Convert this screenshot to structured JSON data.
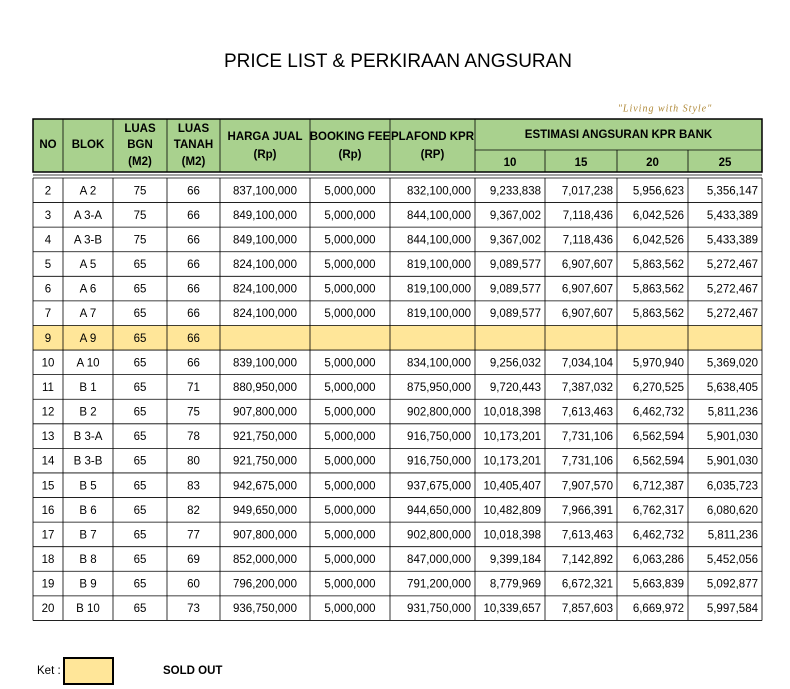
{
  "header": {
    "title": "PRICE LIST & PERKIRAAN ANGSURAN",
    "tagline": "\"Living with Style\""
  },
  "table": {
    "columns": [
      [
        "NO"
      ],
      [
        "BLOK"
      ],
      [
        "LUAS",
        "BGN",
        "(M2)"
      ],
      [
        "LUAS",
        "TANAH",
        "(M2)"
      ],
      [
        "HARGA JUAL",
        "(Rp)"
      ],
      [
        "BOOKING FEE",
        "(Rp)"
      ],
      [
        "PLAFOND KPR",
        "(RP)"
      ]
    ],
    "group_header": "ESTIMASI ANGSURAN KPR BANK",
    "sub_columns": [
      "10",
      "15",
      "20",
      "25"
    ],
    "rows": [
      [
        "2",
        "A 2",
        "75",
        "66",
        "837,100,000",
        "5,000,000",
        "832,100,000",
        "9,233,838",
        "7,017,238",
        "5,956,623",
        "5,356,147"
      ],
      [
        "3",
        "A 3-A",
        "75",
        "66",
        "849,100,000",
        "5,000,000",
        "844,100,000",
        "9,367,002",
        "7,118,436",
        "6,042,526",
        "5,433,389"
      ],
      [
        "4",
        "A 3-B",
        "75",
        "66",
        "849,100,000",
        "5,000,000",
        "844,100,000",
        "9,367,002",
        "7,118,436",
        "6,042,526",
        "5,433,389"
      ],
      [
        "5",
        "A 5",
        "65",
        "66",
        "824,100,000",
        "5,000,000",
        "819,100,000",
        "9,089,577",
        "6,907,607",
        "5,863,562",
        "5,272,467"
      ],
      [
        "6",
        "A 6",
        "65",
        "66",
        "824,100,000",
        "5,000,000",
        "819,100,000",
        "9,089,577",
        "6,907,607",
        "5,863,562",
        "5,272,467"
      ],
      [
        "7",
        "A 7",
        "65",
        "66",
        "824,100,000",
        "5,000,000",
        "819,100,000",
        "9,089,577",
        "6,907,607",
        "5,863,562",
        "5,272,467"
      ],
      [
        "9",
        "A 9",
        "65",
        "66"
      ],
      [
        "10",
        "A 10",
        "65",
        "66",
        "839,100,000",
        "5,000,000",
        "834,100,000",
        "9,256,032",
        "7,034,104",
        "5,970,940",
        "5,369,020"
      ],
      [
        "11",
        "B 1",
        "65",
        "71",
        "880,950,000",
        "5,000,000",
        "875,950,000",
        "9,720,443",
        "7,387,032",
        "6,270,525",
        "5,638,405"
      ],
      [
        "12",
        "B 2",
        "65",
        "75",
        "907,800,000",
        "5,000,000",
        "902,800,000",
        "10,018,398",
        "7,613,463",
        "6,462,732",
        "5,811,236"
      ],
      [
        "13",
        "B 3-A",
        "65",
        "78",
        "921,750,000",
        "5,000,000",
        "916,750,000",
        "10,173,201",
        "7,731,106",
        "6,562,594",
        "5,901,030"
      ],
      [
        "14",
        "B 3-B",
        "65",
        "80",
        "921,750,000",
        "5,000,000",
        "916,750,000",
        "10,173,201",
        "7,731,106",
        "6,562,594",
        "5,901,030"
      ],
      [
        "15",
        "B 5",
        "65",
        "83",
        "942,675,000",
        "5,000,000",
        "937,675,000",
        "10,405,407",
        "7,907,570",
        "6,712,387",
        "6,035,723"
      ],
      [
        "16",
        "B 6",
        "65",
        "82",
        "949,650,000",
        "5,000,000",
        "944,650,000",
        "10,482,809",
        "7,966,391",
        "6,762,317",
        "6,080,620"
      ],
      [
        "17",
        "B 7",
        "65",
        "77",
        "907,800,000",
        "5,000,000",
        "902,800,000",
        "10,018,398",
        "7,613,463",
        "6,462,732",
        "5,811,236"
      ],
      [
        "18",
        "B 8",
        "65",
        "69",
        "852,000,000",
        "5,000,000",
        "847,000,000",
        "9,399,184",
        "7,142,892",
        "6,063,286",
        "5,452,056"
      ],
      [
        "19",
        "B 9",
        "65",
        "60",
        "796,200,000",
        "5,000,000",
        "791,200,000",
        "8,779,969",
        "6,672,321",
        "5,663,839",
        "5,092,877"
      ],
      [
        "20",
        "B 10",
        "65",
        "73",
        "936,750,000",
        "5,000,000",
        "931,750,000",
        "10,339,657",
        "7,857,603",
        "6,669,972",
        "5,997,584"
      ]
    ]
  },
  "legend": {
    "label": "Ket :",
    "text": "SOLD OUT"
  }
}
